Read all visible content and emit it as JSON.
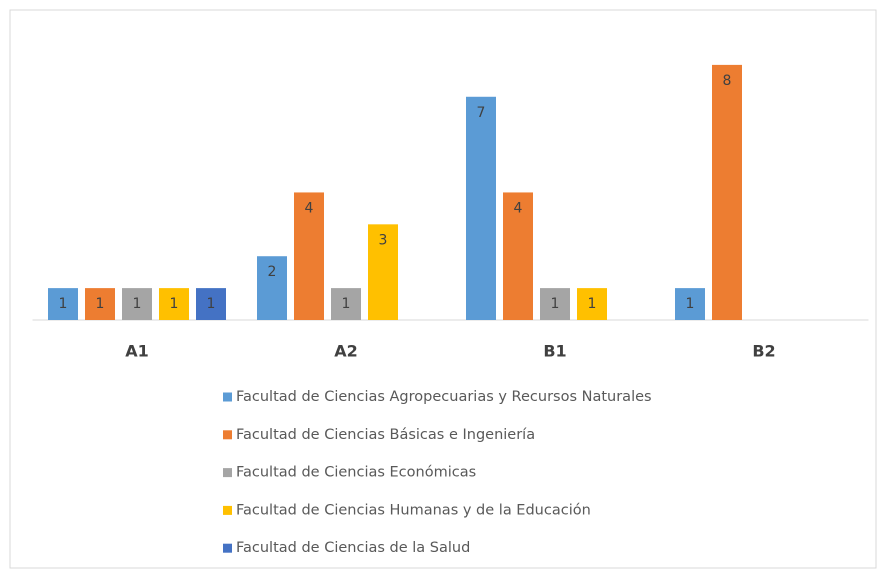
{
  "chart_data": {
    "type": "bar",
    "categories": [
      "A1",
      "A2",
      "B1",
      "B2"
    ],
    "series": [
      {
        "name": "Facultad de Ciencias Agropecuarias y Recursos Naturales",
        "color": "#5b9bd5",
        "values": [
          1,
          2,
          7,
          1
        ]
      },
      {
        "name": "Facultad de Ciencias Básicas e Ingeniería",
        "color": "#ed7d31",
        "values": [
          1,
          4,
          4,
          8
        ]
      },
      {
        "name": "Facultad de Ciencias Económicas",
        "color": "#a5a5a5",
        "values": [
          1,
          1,
          1,
          null
        ]
      },
      {
        "name": "Facultad de Ciencias Humanas y de la Educación",
        "color": "#ffc000",
        "values": [
          1,
          3,
          1,
          null
        ]
      },
      {
        "name": "Facultad de Ciencias de la Salud",
        "color": "#4472c4",
        "values": [
          1,
          null,
          null,
          null
        ]
      }
    ],
    "ylim": [
      0,
      9
    ],
    "legend": "bottom"
  }
}
